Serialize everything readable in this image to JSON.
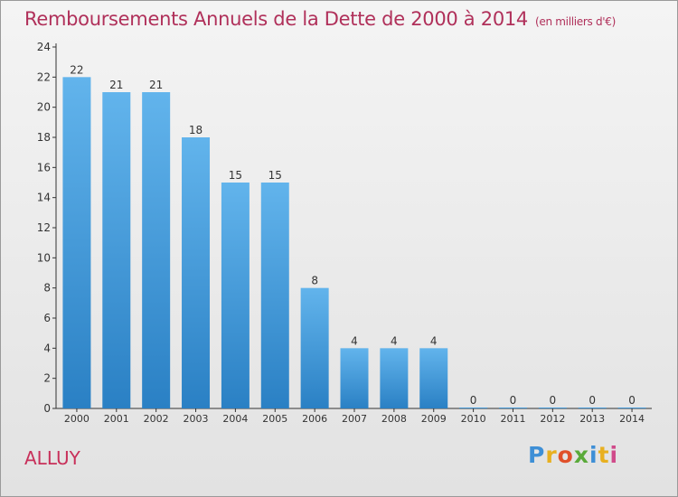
{
  "title": "Remboursements Annuels de la Dette de 2000 à 2014",
  "unit": "(en milliers d'€)",
  "commune": "ALLUY",
  "logo": {
    "text": "Proxiti",
    "letters": [
      "P",
      "r",
      "o",
      "x",
      "i",
      "t",
      "i"
    ]
  },
  "colors": {
    "bar_top": "#62b4ec",
    "bar_bottom": "#2a80c4",
    "title": "#b0305a"
  },
  "chart_data": {
    "type": "bar",
    "categories": [
      "2000",
      "2001",
      "2002",
      "2003",
      "2004",
      "2005",
      "2006",
      "2007",
      "2008",
      "2009",
      "2010",
      "2011",
      "2012",
      "2013",
      "2014"
    ],
    "values": [
      22,
      21,
      21,
      18,
      15,
      15,
      8,
      4,
      4,
      4,
      0,
      0,
      0,
      0,
      0
    ],
    "ylim": [
      0,
      24
    ],
    "yticks": [
      0,
      2,
      4,
      6,
      8,
      10,
      12,
      14,
      16,
      18,
      20,
      22,
      24
    ],
    "grid": false,
    "legend": "none"
  }
}
